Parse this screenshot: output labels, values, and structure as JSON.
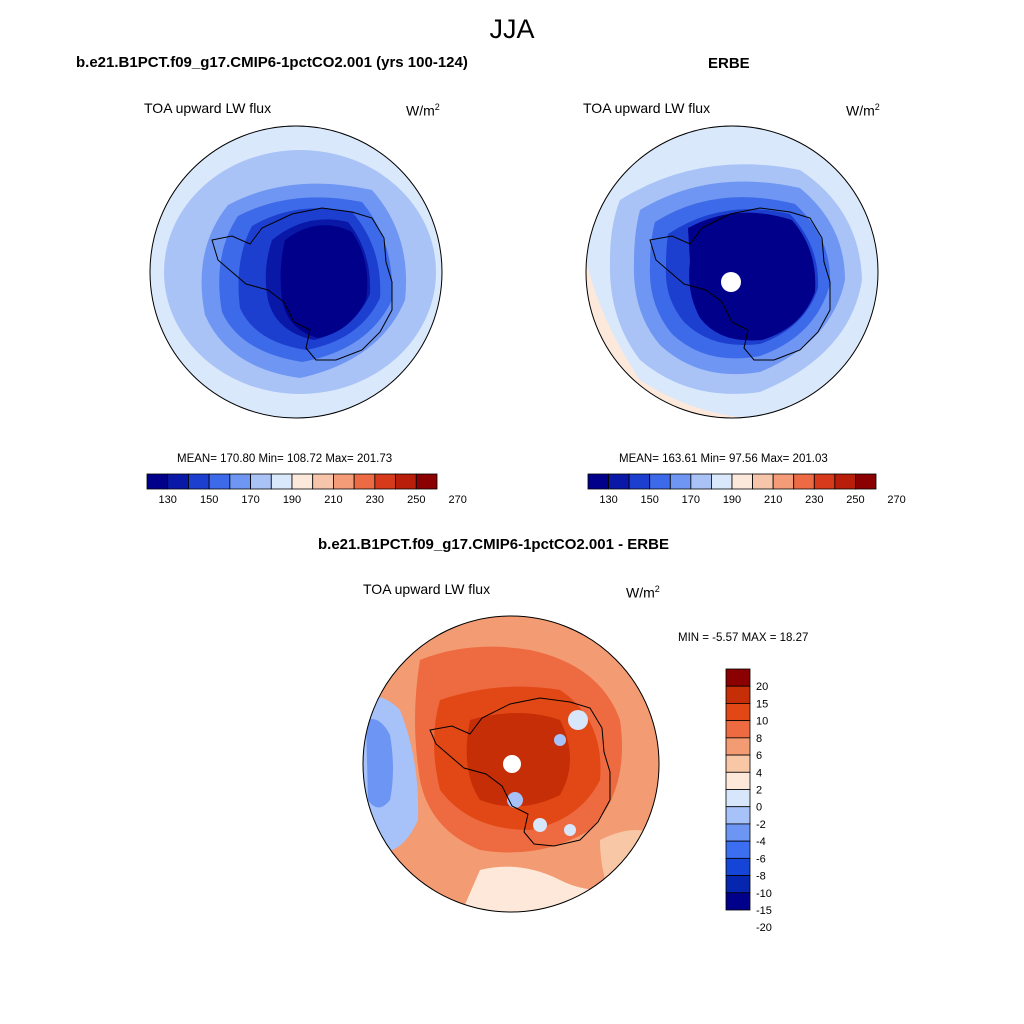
{
  "colors": {
    "abs_levels": [
      "#00008b",
      "#0a18a8",
      "#1d3fcf",
      "#3c6ae8",
      "#6f96f2",
      "#a9c3f7",
      "#d9e8fb",
      "#fde9dc",
      "#f7c5a9",
      "#f49b77",
      "#ec6a44",
      "#d63a1b",
      "#b81e0a",
      "#8b0000"
    ],
    "diff_levels": [
      "#00008b",
      "#0626b0",
      "#1545d6",
      "#3b6ef0",
      "#6d95f3",
      "#a7c2f8",
      "#d7e6fb",
      "#fde8da",
      "#f8c7a6",
      "#f39b72",
      "#ee6a40",
      "#e24815",
      "#c52e06",
      "#8b0000"
    ]
  },
  "figure": {
    "title": "JJA"
  },
  "panels": [
    {
      "id": "model",
      "title": "b.e21.B1PCT.f09_g17.CMIP6-1pctCO2.001 (yrs 100-124)",
      "variable": "TOA upward LW flux",
      "units_base": "W/m",
      "units_exp": "2",
      "stats": {
        "mean": "170.80",
        "min": "108.72",
        "max": "201.73"
      },
      "stats_text": "MEAN= 170.80  Min= 108.72  Max= 201.73"
    },
    {
      "id": "obs",
      "title": "ERBE",
      "variable": "TOA upward LW flux",
      "units_base": "W/m",
      "units_exp": "2",
      "stats": {
        "mean": "163.61",
        "min": "97.56",
        "max": "201.03"
      },
      "stats_text": "MEAN= 163.61  Min=  97.56  Max= 201.03"
    },
    {
      "id": "diff",
      "title": "b.e21.B1PCT.f09_g17.CMIP6-1pctCO2.001 - ERBE",
      "variable": "TOA upward LW flux",
      "units_base": "W/m",
      "units_exp": "2",
      "stats": {
        "min": "-5.57",
        "max": "18.27"
      },
      "stats_text": "MIN =  -5.57 MAX =  18.27"
    }
  ],
  "colorbar_abs": {
    "labels": [
      "130",
      "150",
      "170",
      "190",
      "210",
      "230",
      "250",
      "270"
    ]
  },
  "colorbar_diff": {
    "labels": [
      "20",
      "15",
      "10",
      "8",
      "6",
      "4",
      "2",
      "0",
      "-2",
      "-4",
      "-6",
      "-8",
      "-10",
      "-15",
      "-20"
    ]
  },
  "chart_data": [
    {
      "type": "heatmap",
      "projection": "south polar stereographic",
      "title": "b.e21.B1PCT.f09_g17.CMIP6-1pctCO2.001 (yrs 100-124)",
      "variable": "TOA upward LW flux",
      "units": "W/m2",
      "mean": 170.8,
      "min": 108.72,
      "max": 201.73,
      "contour_levels": [
        130,
        140,
        150,
        160,
        170,
        180,
        190,
        200,
        210,
        220,
        230,
        240,
        250,
        260,
        270
      ]
    },
    {
      "type": "heatmap",
      "projection": "south polar stereographic",
      "title": "ERBE",
      "variable": "TOA upward LW flux",
      "units": "W/m2",
      "mean": 163.61,
      "min": 97.56,
      "max": 201.03,
      "contour_levels": [
        130,
        140,
        150,
        160,
        170,
        180,
        190,
        200,
        210,
        220,
        230,
        240,
        250,
        260,
        270
      ]
    },
    {
      "type": "heatmap",
      "projection": "south polar stereographic",
      "title": "b.e21.B1PCT.f09_g17.CMIP6-1pctCO2.001 - ERBE",
      "variable": "TOA upward LW flux",
      "units": "W/m2",
      "min": -5.57,
      "max": 18.27,
      "contour_levels": [
        -20,
        -15,
        -10,
        -8,
        -6,
        -4,
        -2,
        0,
        2,
        4,
        6,
        8,
        10,
        15,
        20
      ]
    }
  ]
}
